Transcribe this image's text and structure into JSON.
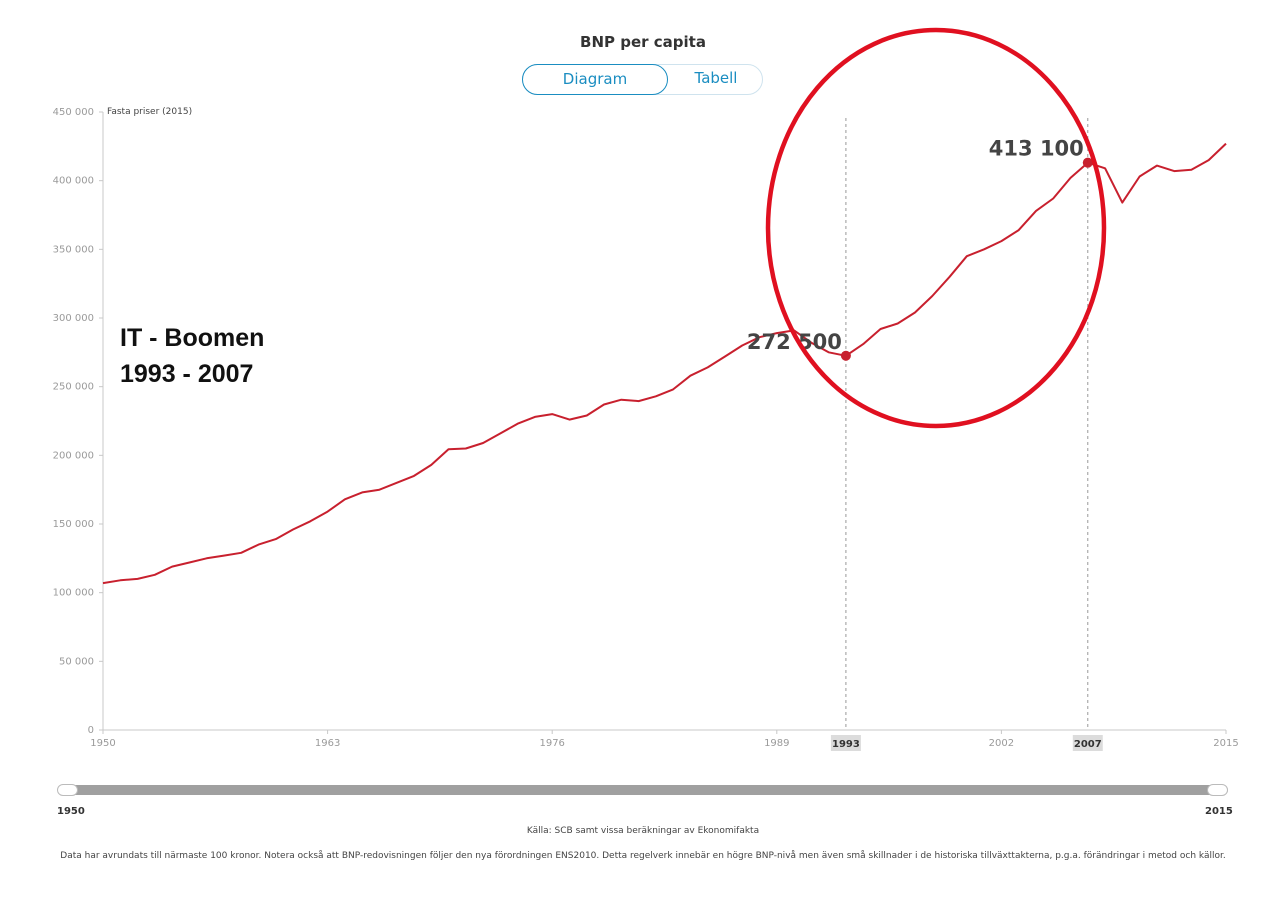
{
  "header": {
    "title": "BNP per capita"
  },
  "view_toggle": {
    "active": "Diagram",
    "inactive": "Tabell"
  },
  "unit_label": "Fasta priser (2015)",
  "annotation": {
    "line1": "IT - Boomen",
    "line2": "1993 - 2007"
  },
  "slider": {
    "start_label": "1950",
    "end_label": "2015"
  },
  "footer": {
    "source": "Källa: SCB samt vissa beräkningar av Ekonomifakta",
    "note": "Data har avrundats till närmaste 100 kronor. Notera också att BNP-redovisningen följer den nya förordningen ENS2010. Detta regelverk innebär en högre BNP-nivå men även små skillnader i de historiska tillväxttakterna, p.g.a. förändringar i metod och källor."
  },
  "colors": {
    "series": "#c8202e",
    "circle": "#e01020",
    "accent": "#1a8dc1"
  },
  "chart_data": {
    "type": "line",
    "title": "BNP per capita",
    "ylabel": "Fasta priser (2015)",
    "xlim": [
      1950,
      2015
    ],
    "ylim": [
      0,
      450000
    ],
    "y_ticks": [
      0,
      50000,
      100000,
      150000,
      200000,
      250000,
      300000,
      350000,
      400000,
      450000
    ],
    "y_tick_labels": [
      "0",
      "50 000",
      "100 000",
      "150 000",
      "200 000",
      "250 000",
      "300 000",
      "350 000",
      "400 000",
      "450 000"
    ],
    "x_ticks": [
      1950,
      1963,
      1976,
      1989,
      2002,
      2015
    ],
    "highlighted_years": [
      1993,
      2007
    ],
    "grid": false,
    "series": [
      {
        "x": [
          1950,
          1951,
          1952,
          1953,
          1954,
          1955,
          1956,
          1957,
          1958,
          1959,
          1960,
          1961,
          1962,
          1963,
          1964,
          1965,
          1966,
          1967,
          1968,
          1969,
          1970,
          1971,
          1972,
          1973,
          1974,
          1975,
          1976,
          1977,
          1978,
          1979,
          1980,
          1981,
          1982,
          1983,
          1984,
          1985,
          1986,
          1987,
          1988,
          1989,
          1990,
          1991,
          1992,
          1993,
          1994,
          1995,
          1996,
          1997,
          1998,
          1999,
          2000,
          2001,
          2002,
          2003,
          2004,
          2005,
          2006,
          2007,
          2008,
          2009,
          2010,
          2011,
          2012,
          2013,
          2014,
          2015
        ],
        "values": [
          107000,
          109000,
          110000,
          113000,
          119000,
          122000,
          125000,
          127000,
          129000,
          135000,
          139000,
          146000,
          152000,
          159000,
          168000,
          173000,
          175000,
          180000,
          185000,
          193000,
          204500,
          205000,
          209000,
          216000,
          223000,
          228000,
          230000,
          226000,
          229000,
          237000,
          240500,
          239500,
          243000,
          248000,
          258000,
          264000,
          272000,
          280000,
          286000,
          289000,
          291000,
          282000,
          275000,
          272500,
          281000,
          292000,
          296000,
          304000,
          316000,
          330000,
          345000,
          350000,
          356000,
          364000,
          378000,
          387000,
          402000,
          413100,
          409000,
          384000,
          403000,
          411000,
          407000,
          408000,
          415000,
          427000
        ]
      }
    ],
    "point_labels": [
      {
        "year": 1993,
        "value": 272500,
        "label": "272 500"
      },
      {
        "year": 2007,
        "value": 413100,
        "label": "413 100"
      }
    ]
  }
}
